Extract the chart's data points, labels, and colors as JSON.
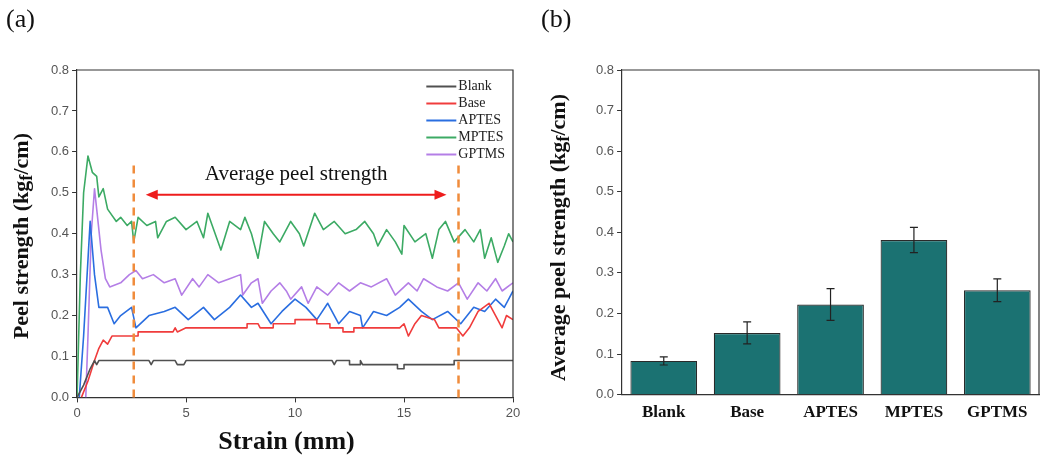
{
  "chart_data": [
    {
      "type": "line",
      "title": "(a)",
      "xlabel": "Strain (mm)",
      "ylabel": "Peel strength (kg$_{f}$/cm)",
      "xlim": [
        0,
        20
      ],
      "xticks": [
        0,
        5,
        10,
        15,
        20
      ],
      "ylim": [
        0,
        0.8
      ],
      "yticks": [
        {
          "value": 0,
          "label": "0.0"
        },
        {
          "value": 0.1,
          "label": "0.1"
        },
        {
          "value": 0.2,
          "label": "0.2"
        },
        {
          "value": 0.3,
          "label": "0.3"
        },
        {
          "value": 0.4,
          "label": "0.4"
        },
        {
          "value": 0.5,
          "label": "0.5"
        },
        {
          "value": 0.6,
          "label": "0.6"
        },
        {
          "value": 0.7,
          "label": "0.7"
        },
        {
          "value": 0.8,
          "label": "0.8"
        }
      ],
      "legend": "top right",
      "grid": false,
      "marker": "none",
      "line_style": "solid",
      "ref_lines": [
        {
          "axis": "x",
          "value": 2.6,
          "color": "#f08c3c",
          "line_style": "dashed"
        },
        {
          "axis": "x",
          "value": 17.5,
          "color": "#f08c3c",
          "line_style": "dashed"
        }
      ],
      "annotations": [
        "Average peel strength"
      ],
      "series": [
        {
          "name": "Blank",
          "color": "#505050",
          "x": [
            0,
            0.3,
            0.6,
            0.8,
            0.9,
            1.0,
            3.3,
            3.4,
            3.5,
            4.5,
            4.6,
            4.9,
            5.0,
            11.7,
            11.8,
            11.9,
            12.5,
            12.5,
            13.0,
            13.0,
            13.1,
            14.7,
            14.7,
            15.0,
            15.0,
            17.3,
            17.3,
            20
          ],
          "values": [
            0,
            0.03,
            0.07,
            0.09,
            0.08,
            0.09,
            0.09,
            0.08,
            0.09,
            0.09,
            0.08,
            0.08,
            0.09,
            0.09,
            0.08,
            0.09,
            0.09,
            0.08,
            0.08,
            0.09,
            0.08,
            0.08,
            0.07,
            0.07,
            0.08,
            0.08,
            0.09,
            0.09
          ]
        },
        {
          "name": "Base",
          "color": "#f03c3c",
          "x": [
            0.2,
            0.5,
            0.8,
            1.0,
            1.2,
            1.4,
            1.6,
            2.8,
            2.8,
            4.4,
            4.5,
            4.6,
            5.0,
            7.8,
            7.8,
            8.3,
            8.4,
            9.0,
            9.0,
            10.0,
            10.0,
            11.0,
            11.0,
            11.6,
            11.6,
            12.2,
            12.2,
            12.7,
            12.7,
            14.8,
            15.0,
            15.2,
            15.5,
            15.8,
            16.4,
            16.6,
            17.4,
            17.7,
            18.0,
            18.4,
            18.9,
            19.2,
            19.5,
            19.7,
            20
          ],
          "values": [
            0,
            0.04,
            0.09,
            0.12,
            0.14,
            0.13,
            0.15,
            0.15,
            0.16,
            0.16,
            0.17,
            0.16,
            0.17,
            0.17,
            0.18,
            0.18,
            0.17,
            0.17,
            0.18,
            0.18,
            0.19,
            0.19,
            0.18,
            0.18,
            0.17,
            0.17,
            0.16,
            0.16,
            0.17,
            0.17,
            0.18,
            0.15,
            0.18,
            0.2,
            0.19,
            0.17,
            0.17,
            0.15,
            0.17,
            0.21,
            0.23,
            0.2,
            0.17,
            0.2,
            0.19
          ]
        },
        {
          "name": "APTES",
          "color": "#2a6ee0",
          "x": [
            0.1,
            0.3,
            0.6,
            0.8,
            1.0,
            1.4,
            1.7,
            2.0,
            2.5,
            2.7,
            3.3,
            4.0,
            4.5,
            5.1,
            5.8,
            6.3,
            7.0,
            7.5,
            8.0,
            8.3,
            8.9,
            9.4,
            10.0,
            10.5,
            11.0,
            11.5,
            12.0,
            12.5,
            13.0,
            13.1,
            13.6,
            14.2,
            14.8,
            15.2,
            15.8,
            16.3,
            17.0,
            17.6,
            18.2,
            18.7,
            19.2,
            19.6,
            20
          ],
          "values": [
            0,
            0.15,
            0.43,
            0.3,
            0.22,
            0.22,
            0.18,
            0.2,
            0.22,
            0.17,
            0.2,
            0.21,
            0.22,
            0.19,
            0.22,
            0.19,
            0.22,
            0.25,
            0.22,
            0.23,
            0.18,
            0.21,
            0.24,
            0.22,
            0.19,
            0.23,
            0.18,
            0.21,
            0.2,
            0.17,
            0.21,
            0.2,
            0.22,
            0.24,
            0.21,
            0.19,
            0.21,
            0.18,
            0.22,
            0.21,
            0.24,
            0.22,
            0.26
          ]
        },
        {
          "name": "MPTES",
          "color": "#3caa64",
          "x": [
            0,
            0.15,
            0.3,
            0.5,
            0.7,
            0.9,
            1.0,
            1.2,
            1.4,
            1.8,
            2.0,
            2.3,
            2.5,
            2.6,
            2.8,
            3.2,
            3.6,
            3.7,
            4.1,
            4.5,
            5.0,
            5.5,
            5.8,
            6.0,
            6.6,
            7.0,
            7.5,
            7.7,
            8.0,
            8.3,
            8.6,
            9.0,
            9.3,
            9.8,
            10.2,
            10.4,
            10.9,
            11.3,
            11.8,
            12.3,
            12.8,
            13.2,
            13.6,
            13.8,
            14.2,
            14.6,
            14.9,
            15.0,
            15.5,
            16.0,
            16.3,
            16.6,
            16.9,
            17.3,
            17.8,
            18.2,
            18.5,
            18.7,
            19.0,
            19.3,
            19.6,
            19.8,
            20
          ],
          "values": [
            0,
            0.3,
            0.5,
            0.59,
            0.55,
            0.54,
            0.49,
            0.51,
            0.46,
            0.43,
            0.44,
            0.42,
            0.43,
            0.38,
            0.44,
            0.42,
            0.43,
            0.39,
            0.43,
            0.44,
            0.41,
            0.43,
            0.39,
            0.45,
            0.36,
            0.43,
            0.41,
            0.44,
            0.4,
            0.34,
            0.43,
            0.4,
            0.38,
            0.43,
            0.4,
            0.37,
            0.45,
            0.41,
            0.43,
            0.4,
            0.41,
            0.43,
            0.4,
            0.37,
            0.41,
            0.38,
            0.35,
            0.42,
            0.38,
            0.4,
            0.34,
            0.41,
            0.43,
            0.38,
            0.41,
            0.38,
            0.41,
            0.34,
            0.39,
            0.33,
            0.37,
            0.4,
            0.38
          ]
        },
        {
          "name": "GPTMS",
          "color": "#b47ee6",
          "x": [
            0.4,
            0.5,
            0.65,
            0.8,
            0.9,
            1.1,
            1.3,
            1.5,
            2.0,
            2.4,
            2.7,
            3.0,
            3.5,
            4.0,
            4.5,
            4.8,
            5.3,
            5.6,
            6.0,
            6.5,
            7.0,
            7.5,
            7.6,
            8.0,
            8.3,
            8.5,
            8.9,
            9.3,
            9.6,
            9.8,
            10.3,
            10.6,
            11.0,
            11.5,
            12.0,
            12.5,
            13.0,
            13.5,
            14.2,
            14.6,
            15.2,
            15.6,
            15.9,
            16.5,
            17.0,
            17.5,
            17.9,
            18.4,
            18.8,
            19.2,
            19.5,
            20
          ],
          "values": [
            0,
            0.15,
            0.4,
            0.51,
            0.46,
            0.36,
            0.29,
            0.27,
            0.28,
            0.3,
            0.31,
            0.29,
            0.3,
            0.28,
            0.29,
            0.25,
            0.29,
            0.27,
            0.3,
            0.28,
            0.29,
            0.3,
            0.25,
            0.28,
            0.29,
            0.23,
            0.26,
            0.28,
            0.26,
            0.24,
            0.27,
            0.23,
            0.27,
            0.25,
            0.28,
            0.26,
            0.28,
            0.27,
            0.29,
            0.25,
            0.28,
            0.26,
            0.29,
            0.27,
            0.26,
            0.28,
            0.24,
            0.28,
            0.26,
            0.29,
            0.26,
            0.28
          ]
        }
      ]
    },
    {
      "type": "bar",
      "title": "(b)",
      "ylabel": "Average peel strength (kg$_{f}$/cm)",
      "categories": [
        "Blank",
        "Base",
        "APTES",
        "MPTES",
        "GPTMS"
      ],
      "values": [
        0.083,
        0.152,
        0.222,
        0.381,
        0.257
      ],
      "errors": [
        0.01,
        0.027,
        0.039,
        0.031,
        0.028
      ],
      "color": "#1b7272",
      "ylim": [
        0,
        0.8
      ],
      "yticks": [
        {
          "value": 0,
          "label": "0.0"
        },
        {
          "value": 0.1,
          "label": "0.1"
        },
        {
          "value": 0.2,
          "label": "0.2"
        },
        {
          "value": 0.3,
          "label": "0.3"
        },
        {
          "value": 0.4,
          "label": "0.4"
        },
        {
          "value": 0.5,
          "label": "0.5"
        },
        {
          "value": 0.6,
          "label": "0.6"
        },
        {
          "value": 0.7,
          "label": "0.7"
        },
        {
          "value": 0.8,
          "label": "0.8"
        }
      ],
      "grid": false
    }
  ]
}
